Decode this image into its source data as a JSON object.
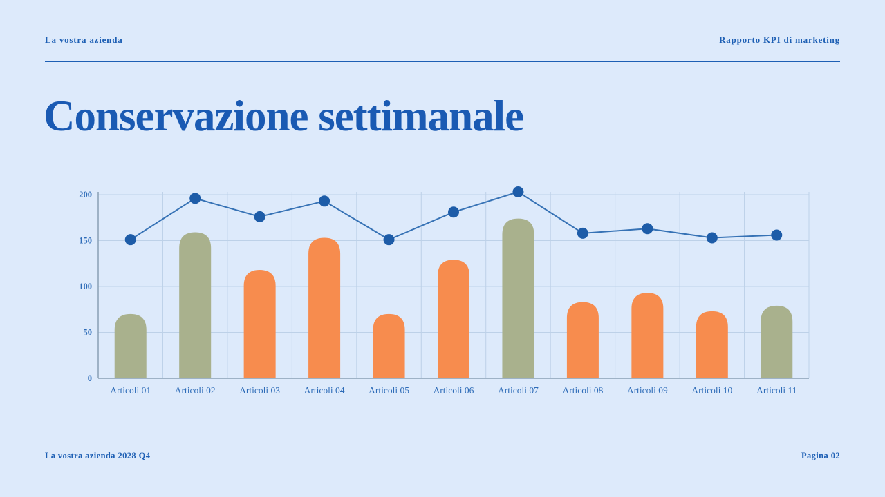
{
  "header": {
    "left": "La vostra azienda",
    "right": "Rapporto KPI di marketing"
  },
  "title": "Conservazione settimanale",
  "footer": {
    "left": "La vostra azienda 2028 Q4",
    "right": "Pagina 02"
  },
  "colors": {
    "background": "#ddeafb",
    "accent_blue": "#1d5fb4",
    "bar_orange": "#f78c4e",
    "bar_green": "#a9b18d",
    "line": "#3672b5",
    "dot": "#1d5ca8",
    "grid": "#bdd1e8",
    "axis": "#8a9fb5",
    "tick_label": "#2e6cb8"
  },
  "chart_data": {
    "type": "combo",
    "title": "Conservazione settimanale",
    "categories": [
      "Articoli 01",
      "Articoli 02",
      "Articoli 03",
      "Articoli 04",
      "Articoli 05",
      "Articoli 06",
      "Articoli 07",
      "Articoli 08",
      "Articoli 09",
      "Articoli 10",
      "Articoli 11"
    ],
    "series": [
      {
        "name": "bars",
        "type": "bar",
        "values": [
          70,
          159,
          118,
          153,
          70,
          129,
          174,
          83,
          93,
          73,
          79
        ],
        "bar_colors": [
          "green",
          "green",
          "orange",
          "orange",
          "orange",
          "orange",
          "green",
          "orange",
          "orange",
          "orange",
          "green"
        ]
      },
      {
        "name": "line",
        "type": "line",
        "values": [
          151,
          196,
          176,
          193,
          151,
          181,
          203,
          158,
          163,
          153,
          156
        ]
      }
    ],
    "xlabel": "",
    "ylabel": "",
    "ylim": [
      0,
      200
    ],
    "yticks": [
      0,
      50,
      100,
      150,
      200
    ],
    "grid": true,
    "legend": "none"
  }
}
